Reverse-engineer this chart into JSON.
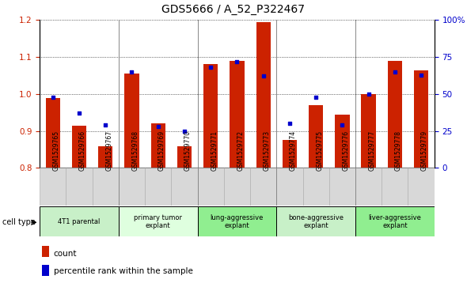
{
  "title": "GDS5666 / A_52_P322467",
  "samples": [
    "GSM1529765",
    "GSM1529766",
    "GSM1529767",
    "GSM1529768",
    "GSM1529769",
    "GSM1529770",
    "GSM1529771",
    "GSM1529772",
    "GSM1529773",
    "GSM1529774",
    "GSM1529775",
    "GSM1529776",
    "GSM1529777",
    "GSM1529778",
    "GSM1529779"
  ],
  "count_values": [
    0.99,
    0.915,
    0.858,
    1.055,
    0.92,
    0.858,
    1.08,
    1.09,
    1.195,
    0.875,
    0.97,
    0.945,
    1.0,
    1.09,
    1.065
  ],
  "percentile_values": [
    48,
    37,
    29,
    65,
    28,
    25,
    68,
    72,
    62,
    30,
    48,
    29,
    50,
    65,
    63
  ],
  "cell_type_groups": [
    {
      "label": "4T1 parental",
      "start": 0,
      "end": 3,
      "color": "#c8f0c8"
    },
    {
      "label": "primary tumor\nexplant",
      "start": 3,
      "end": 6,
      "color": "#dfffdf"
    },
    {
      "label": "lung-aggressive\nexplant",
      "start": 6,
      "end": 9,
      "color": "#90ee90"
    },
    {
      "label": "bone-aggressive\nexplant",
      "start": 9,
      "end": 12,
      "color": "#c8f0c8"
    },
    {
      "label": "liver-aggressive\nexplant",
      "start": 12,
      "end": 15,
      "color": "#90ee90"
    }
  ],
  "ylim_left": [
    0.8,
    1.2
  ],
  "ylim_right": [
    0,
    100
  ],
  "yticks_left": [
    0.8,
    0.9,
    1.0,
    1.1,
    1.2
  ],
  "yticks_right": [
    0,
    25,
    50,
    75,
    100
  ],
  "ytick_labels_right": [
    "0",
    "25",
    "50",
    "75",
    "100%"
  ],
  "bar_color": "#cc2200",
  "dot_color": "#0000cc",
  "legend_count_label": "count",
  "legend_percentile_label": "percentile rank within the sample",
  "cell_type_label": "cell type"
}
